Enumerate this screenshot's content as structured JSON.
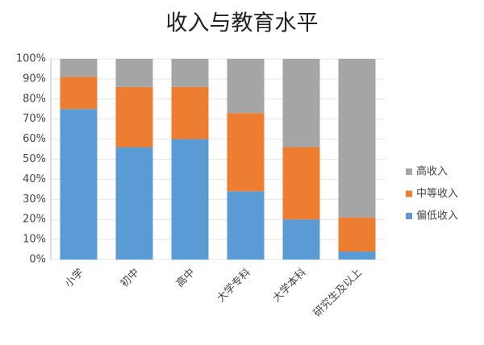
{
  "chart_data": {
    "type": "stacked-bar",
    "title": "收入与教育水平",
    "categories": [
      "小学",
      "初中",
      "高中",
      "大学专科",
      "大学本科",
      "研究生及以上"
    ],
    "series": [
      {
        "name": "偏低收入",
        "color": "#5b9bd5",
        "values": [
          75,
          56,
          60,
          34,
          20,
          4
        ]
      },
      {
        "name": "中等收入",
        "color": "#ed7d31",
        "values": [
          16,
          30,
          26,
          39,
          36,
          17
        ]
      },
      {
        "name": "高收入",
        "color": "#a5a5a5",
        "values": [
          9,
          14,
          14,
          27,
          44,
          79
        ]
      }
    ],
    "ylim": [
      0,
      100
    ],
    "yticks": [
      {
        "value": 0,
        "label": "0%"
      },
      {
        "value": 10,
        "label": "10%"
      },
      {
        "value": 20,
        "label": "20%"
      },
      {
        "value": 30,
        "label": "30%"
      },
      {
        "value": 40,
        "label": "40%"
      },
      {
        "value": 50,
        "label": "50%"
      },
      {
        "value": 60,
        "label": "60%"
      },
      {
        "value": 70,
        "label": "70%"
      },
      {
        "value": 80,
        "label": "80%"
      },
      {
        "value": 90,
        "label": "90%"
      },
      {
        "value": 100,
        "label": "100%"
      }
    ],
    "grid": true,
    "legend": "right"
  }
}
